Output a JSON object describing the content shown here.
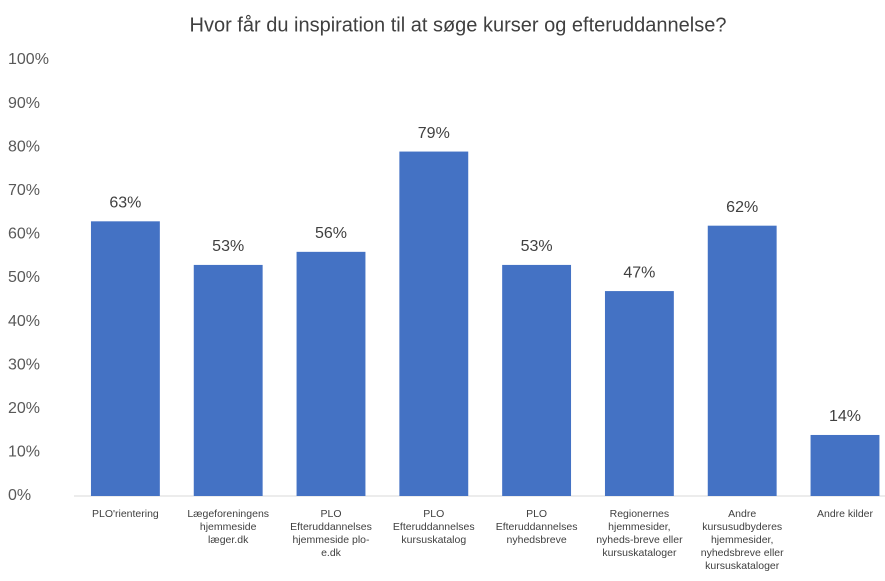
{
  "chart_data": {
    "type": "bar",
    "title": "Hvor får du inspiration til at søge kurser og efteruddannelse?",
    "categories": [
      "PLO'rientering",
      "Lægeforeningens hjemmeside læger.dk",
      "PLO Efteruddannelses hjemmeside plo-e.dk",
      "PLO Efteruddannelses kursuskatalog",
      "PLO Efteruddannelses nyhedsbreve",
      "Regionernes hjemmesider, nyheds-breve eller kursuskataloger",
      "Andre kursusudbyderes hjemmesider, nyhedsbreve eller kursuskataloger",
      "Andre kilder"
    ],
    "values": [
      63,
      53,
      56,
      79,
      53,
      47,
      62,
      14
    ],
    "value_labels": [
      "63%",
      "53%",
      "56%",
      "79%",
      "53%",
      "47%",
      "62%",
      "14%"
    ],
    "color": "#4472c4",
    "ylim": [
      0,
      100
    ],
    "yticks": [
      {
        "value": 0,
        "label": "0%"
      },
      {
        "value": 10,
        "label": "10%"
      },
      {
        "value": 20,
        "label": "20%"
      },
      {
        "value": 30,
        "label": "30%"
      },
      {
        "value": 40,
        "label": "40%"
      },
      {
        "value": 50,
        "label": "50%"
      },
      {
        "value": 60,
        "label": "60%"
      },
      {
        "value": 70,
        "label": "70%"
      },
      {
        "value": 80,
        "label": "80%"
      },
      {
        "value": 90,
        "label": "90%"
      },
      {
        "value": 100,
        "label": "100%"
      }
    ],
    "grid": false
  }
}
